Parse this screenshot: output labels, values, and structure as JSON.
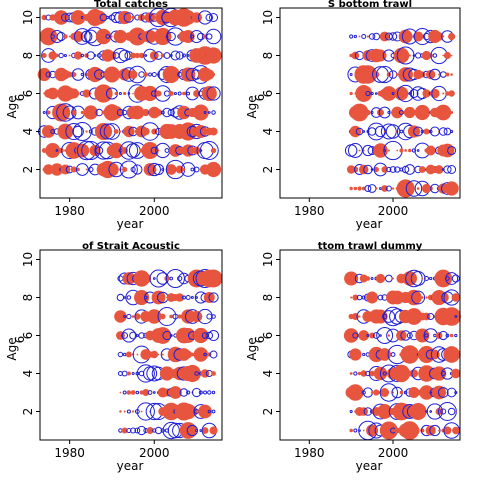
{
  "colors": {
    "positive": "#e8553e",
    "negative": "#1f1fd6",
    "axis": "#000000"
  },
  "chart_data": [
    {
      "type": "scatter",
      "subtype": "bubble-residuals",
      "title": "Total catches",
      "xlabel": "year",
      "ylabel": "Age",
      "xlim": [
        1973,
        2016
      ],
      "ylim": [
        0.5,
        10.5
      ],
      "xticks": [
        1980,
        2000
      ],
      "yticks": [
        2,
        4,
        6,
        8,
        10
      ],
      "extra_ytick_labels": [
        {
          "value": 6,
          "label": "6"
        }
      ],
      "years": [
        1974,
        2014
      ],
      "ages": [
        2,
        10
      ],
      "seed": 11,
      "posBias": 0.5
    },
    {
      "type": "scatter",
      "subtype": "bubble-residuals",
      "title": "S bottom trawl",
      "xlabel": "year",
      "ylabel": "Age",
      "xlim": [
        1973,
        2016
      ],
      "ylim": [
        0.5,
        10.5
      ],
      "xticks": [
        1980,
        2000
      ],
      "yticks": [
        2,
        4,
        6,
        8,
        10
      ],
      "extra_ytick_labels": [
        {
          "value": 6,
          "label": "6"
        }
      ],
      "years": [
        1990,
        2014
      ],
      "ages": [
        1,
        9
      ],
      "seed": 23,
      "posBias": 0.55
    },
    {
      "type": "scatter",
      "subtype": "bubble-residuals",
      "title": "of Strait Acoustic",
      "xlabel": "year",
      "ylabel": "Age",
      "xlim": [
        1973,
        2016
      ],
      "ylim": [
        0.5,
        10.5
      ],
      "xticks": [
        1980,
        2000
      ],
      "yticks": [
        2,
        4,
        6,
        8,
        10
      ],
      "extra_ytick_labels": [
        {
          "value": 6,
          "label": "6"
        }
      ],
      "years": [
        1992,
        2014
      ],
      "ages": [
        1,
        9
      ],
      "seed": 37,
      "posBias": 0.5
    },
    {
      "type": "scatter",
      "subtype": "bubble-residuals",
      "title": "ttom trawl dummy",
      "xlabel": "year",
      "ylabel": "Age",
      "xlim": [
        1973,
        2016
      ],
      "ylim": [
        0.5,
        10.5
      ],
      "xticks": [
        1980,
        2000
      ],
      "yticks": [
        2,
        4,
        6,
        8,
        10
      ],
      "extra_ytick_labels": [
        {
          "value": 6,
          "label": "6"
        }
      ],
      "years": [
        1990,
        2015
      ],
      "ages": [
        1,
        9
      ],
      "seed": 53,
      "posBias": 0.55
    }
  ]
}
